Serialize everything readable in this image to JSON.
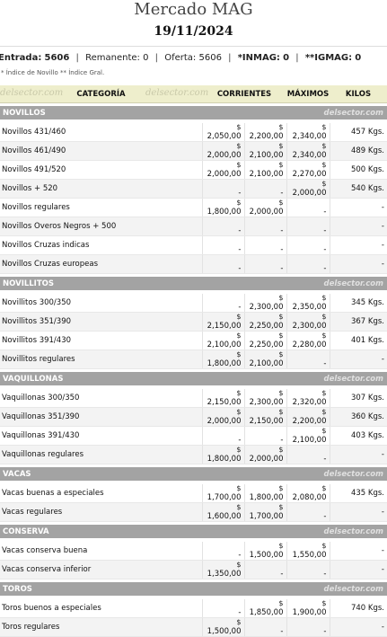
{
  "header": {
    "title": "Mercado MAG",
    "date": "19/11/2024"
  },
  "summary": {
    "entrada_label": "Entrada:",
    "entrada_value": "5606",
    "remanente_label": "Remanente:",
    "remanente_value": "0",
    "oferta_label": "Oferta:",
    "oferta_value": "5606",
    "inmag_label": "*INMAG:",
    "inmag_value": "0",
    "igmag_label": "**IGMAG:",
    "igmag_value": "0",
    "note": "* Índice de Novillo ** Índice Gral."
  },
  "table": {
    "watermark": "delsector.com",
    "columns": {
      "category": "CATEGORÍA",
      "corrientes": "CORRIENTES",
      "maximos": "MÁXIMOS",
      "kilos": "KILOS"
    },
    "currency_symbol": "$",
    "dash": "-",
    "sections": [
      {
        "title": "NOVILLOS",
        "rows": [
          {
            "name": "Novillos 431/460",
            "c1": "2,050,00",
            "c2": "2,200,00",
            "max": "2,340,00",
            "kilos": "457 Kgs."
          },
          {
            "name": "Novillos 461/490",
            "c1": "2,000,00",
            "c2": "2,100,00",
            "max": "2,340,00",
            "kilos": "489 Kgs."
          },
          {
            "name": "Novillos 491/520",
            "c1": "2,000,00",
            "c2": "2,100,00",
            "max": "2,270,00",
            "kilos": "500 Kgs."
          },
          {
            "name": "Novillos + 520",
            "c1": "-",
            "c2": "-",
            "max": "2,000,00",
            "kilos": "540 Kgs."
          },
          {
            "name": "Novillos regulares",
            "c1": "1,800,00",
            "c2": "2,000,00",
            "max": "-",
            "kilos": "-"
          },
          {
            "name": "Novillos Overos Negros + 500",
            "c1": "-",
            "c2": "-",
            "max": "-",
            "kilos": "-"
          },
          {
            "name": "Novillos Cruzas indicas",
            "c1": "-",
            "c2": "-",
            "max": "-",
            "kilos": "-"
          },
          {
            "name": "Novillos Cruzas europeas",
            "c1": "-",
            "c2": "-",
            "max": "-",
            "kilos": "-"
          }
        ]
      },
      {
        "title": "NOVILLITOS",
        "rows": [
          {
            "name": "Novillitos 300/350",
            "c1": "-",
            "c2": "2,300,00",
            "max": "2,350,00",
            "kilos": "345 Kgs."
          },
          {
            "name": "Novillitos 351/390",
            "c1": "2,150,00",
            "c2": "2,250,00",
            "max": "2,300,00",
            "kilos": "367 Kgs."
          },
          {
            "name": "Novillitos 391/430",
            "c1": "2,100,00",
            "c2": "2,250,00",
            "max": "2,280,00",
            "kilos": "401 Kgs."
          },
          {
            "name": "Novillitos regulares",
            "c1": "1,800,00",
            "c2": "2,100,00",
            "max": "-",
            "kilos": "-"
          }
        ]
      },
      {
        "title": "VAQUILLONAS",
        "rows": [
          {
            "name": "Vaquillonas 300/350",
            "c1": "2,150,00",
            "c2": "2,300,00",
            "max": "2,320,00",
            "kilos": "307 Kgs."
          },
          {
            "name": "Vaquillonas 351/390",
            "c1": "2,000,00",
            "c2": "2,150,00",
            "max": "2,200,00",
            "kilos": "360 Kgs."
          },
          {
            "name": "Vaquillonas 391/430",
            "c1": "-",
            "c2": "-",
            "max": "2,100,00",
            "kilos": "403 Kgs."
          },
          {
            "name": "Vaquillonas regulares",
            "c1": "1,800,00",
            "c2": "2,000,00",
            "max": "-",
            "kilos": "-"
          }
        ]
      },
      {
        "title": "VACAS",
        "rows": [
          {
            "name": "Vacas buenas a especiales",
            "c1": "1,700,00",
            "c2": "1,800,00",
            "max": "2,080,00",
            "kilos": "435 Kgs."
          },
          {
            "name": "Vacas regulares",
            "c1": "1,600,00",
            "c2": "1,700,00",
            "max": "-",
            "kilos": "-"
          }
        ]
      },
      {
        "title": "CONSERVA",
        "rows": [
          {
            "name": "Vacas conserva buena",
            "c1": "-",
            "c2": "1,500,00",
            "max": "1,550,00",
            "kilos": "-"
          },
          {
            "name": "Vacas conserva inferior",
            "c1": "1,350,00",
            "c2": "-",
            "max": "-",
            "kilos": "-"
          }
        ]
      },
      {
        "title": "TOROS",
        "rows": [
          {
            "name": "Toros buenos a especiales",
            "c1": "-",
            "c2": "1,850,00",
            "max": "1,900,00",
            "kilos": "740 Kgs."
          },
          {
            "name": "Toros regulares",
            "c1": "1,500,00",
            "c2": "-",
            "max": "-",
            "kilos": "-"
          }
        ]
      }
    ]
  }
}
